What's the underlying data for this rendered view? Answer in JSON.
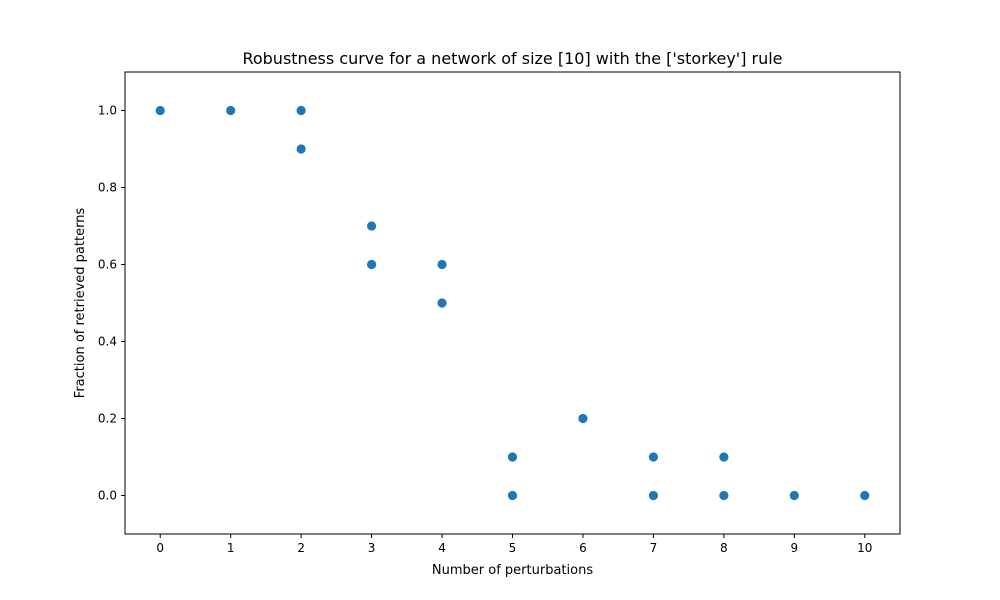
{
  "chart_data": {
    "type": "scatter",
    "title": "Robustness curve for a network of size [10] with the ['storkey'] rule",
    "xlabel": "Number of perturbations",
    "ylabel": "Fraction of retrieved patterns",
    "xlim": [
      -0.5,
      10.5
    ],
    "ylim": [
      -0.1,
      1.1
    ],
    "xticks": [
      "0",
      "1",
      "2",
      "3",
      "4",
      "5",
      "6",
      "7",
      "8",
      "9",
      "10"
    ],
    "yticks": [
      "0.0",
      "0.2",
      "0.4",
      "0.6",
      "0.8",
      "1.0"
    ],
    "grid": false,
    "marker_color": "#1f77b4",
    "points": [
      {
        "x": 0,
        "y": 1.0
      },
      {
        "x": 1,
        "y": 1.0
      },
      {
        "x": 2,
        "y": 1.0
      },
      {
        "x": 2,
        "y": 0.9
      },
      {
        "x": 3,
        "y": 0.7
      },
      {
        "x": 3,
        "y": 0.6
      },
      {
        "x": 4,
        "y": 0.6
      },
      {
        "x": 4,
        "y": 0.5
      },
      {
        "x": 5,
        "y": 0.1
      },
      {
        "x": 5,
        "y": 0.0
      },
      {
        "x": 6,
        "y": 0.2
      },
      {
        "x": 7,
        "y": 0.1
      },
      {
        "x": 7,
        "y": 0.0
      },
      {
        "x": 8,
        "y": 0.1
      },
      {
        "x": 8,
        "y": 0.0
      },
      {
        "x": 9,
        "y": 0.0
      },
      {
        "x": 10,
        "y": 0.0
      }
    ]
  }
}
